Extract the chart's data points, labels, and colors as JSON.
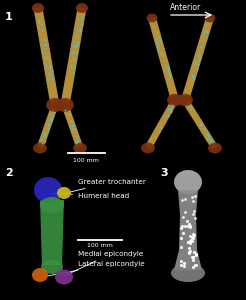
{
  "background_color": "#000000",
  "label_color": "#ffffff",
  "label_fontsize": 8,
  "anterior_text": "Anterior",
  "scalebar1_text": "100 mm",
  "scalebar2_text": "100 mm",
  "annotation_fontsize": 5.2,
  "annotation_color": "#ffffff",
  "hind_leg_colors": {
    "bone_shaft": "#c8a040",
    "blue_dots": "#50c0e0",
    "brown_ends": "#7a3010"
  },
  "humerus_colors": {
    "green_shaft": "#3a9040",
    "blue_head": "#2828c0",
    "yellow_region": "#c8b818",
    "orange_region": "#d06010",
    "purple_region": "#803090"
  },
  "gray_bone_color": "#909090",
  "gray_bone_dark": "#606060"
}
